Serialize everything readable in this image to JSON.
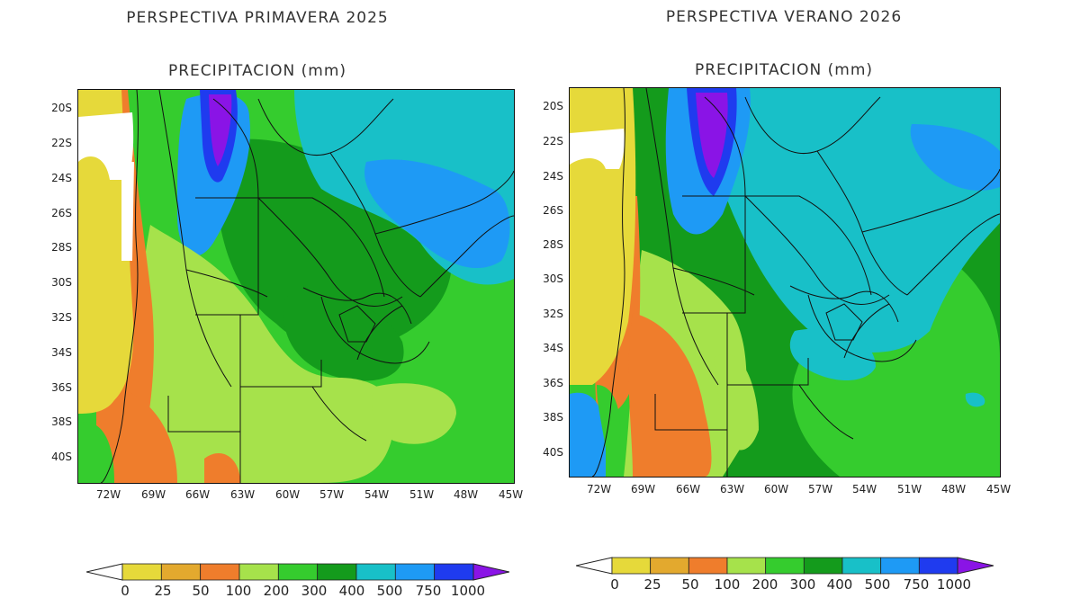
{
  "panels": [
    {
      "title": "PERSPECTIVA PRIMAVERA 2025",
      "subtitle": "PRECIPITACION (mm)",
      "lat_ticks": [
        "20S",
        "22S",
        "24S",
        "26S",
        "28S",
        "30S",
        "32S",
        "34S",
        "36S",
        "38S",
        "40S"
      ],
      "lon_ticks": [
        "72W",
        "69W",
        "66W",
        "63W",
        "60W",
        "57W",
        "54W",
        "51W",
        "48W",
        "45W"
      ]
    },
    {
      "title": "PERSPECTIVA VERANO 2026",
      "subtitle": "PRECIPITACION (mm)",
      "lat_ticks": [
        "20S",
        "22S",
        "24S",
        "26S",
        "28S",
        "30S",
        "32S",
        "34S",
        "36S",
        "38S",
        "40S"
      ],
      "lon_ticks": [
        "72W",
        "69W",
        "66W",
        "63W",
        "60W",
        "57W",
        "54W",
        "51W",
        "48W",
        "45W"
      ]
    }
  ],
  "legend": {
    "labels": [
      "0",
      "25",
      "50",
      "100",
      "200",
      "300",
      "400",
      "500",
      "750",
      "1000"
    ],
    "colors": [
      "#e6d93a",
      "#e3a92e",
      "#ef7d2c",
      "#a6e24b",
      "#35cc2e",
      "#149b1c",
      "#18c0c8",
      "#1e9af5",
      "#1f3bef",
      "#8a14e6"
    ],
    "under_color": "#ffffff"
  },
  "map_colors": {
    "dry": "#e6d93a",
    "very_dry": "#ffffff",
    "orange": "#ef7d2c",
    "light_green": "#a6e24b",
    "green": "#35cc2e",
    "dark_green": "#149b1c",
    "cyan": "#18c0c8",
    "blue": "#1e9af5",
    "deep_blue": "#1f3bef",
    "purple": "#8a14e6"
  }
}
